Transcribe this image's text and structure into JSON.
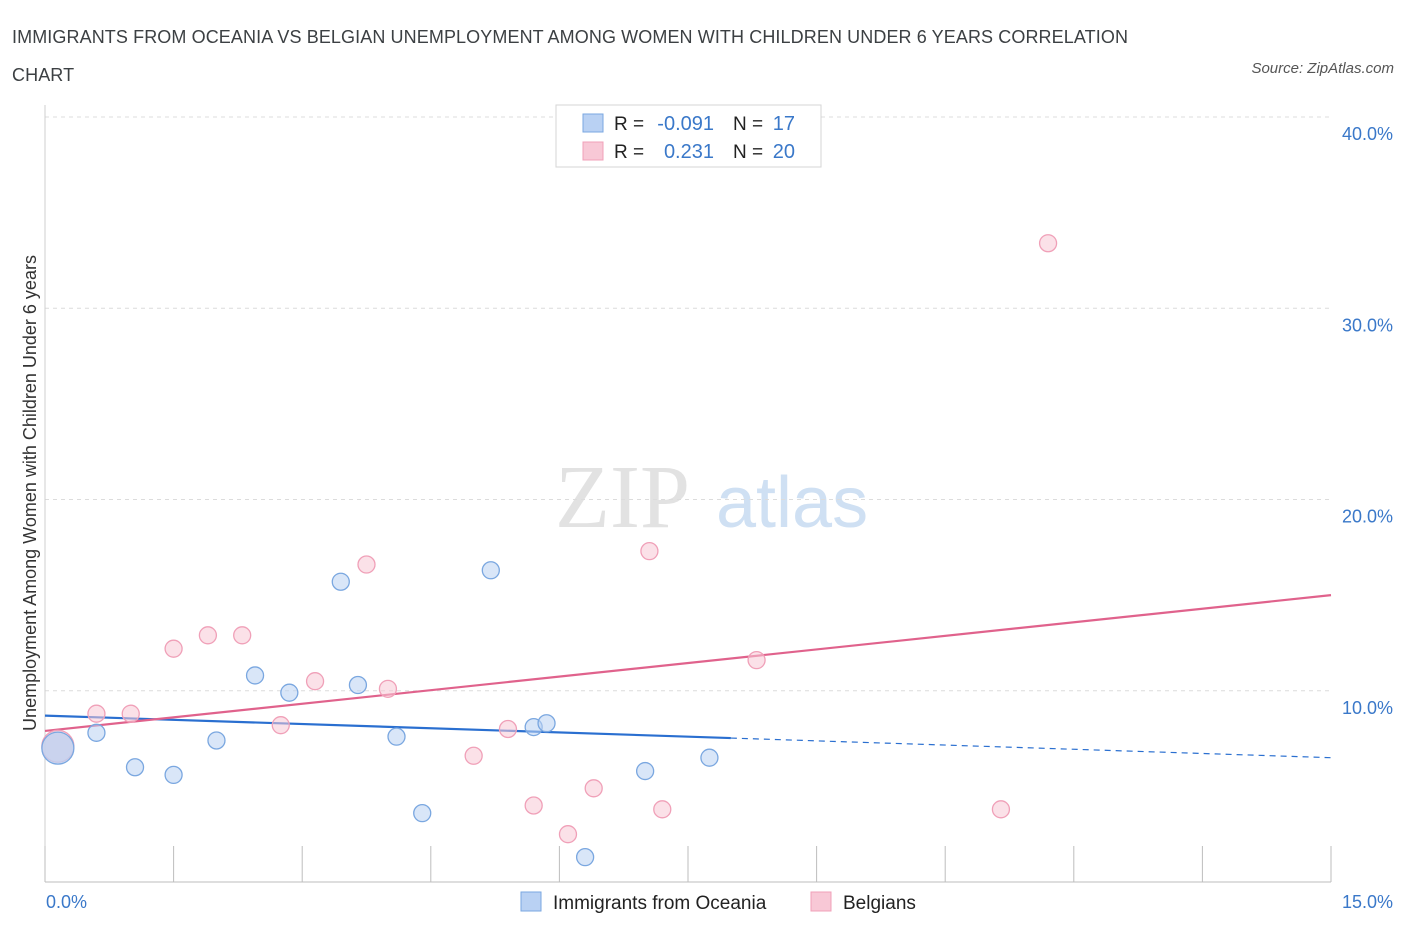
{
  "title": "IMMIGRANTS FROM OCEANIA VS BELGIAN UNEMPLOYMENT AMONG WOMEN WITH CHILDREN UNDER 6 YEARS CORRELATION CHART",
  "source": "Source: ZipAtlas.com",
  "watermark": {
    "zip": "ZIP",
    "atlas": "atlas"
  },
  "legend": {
    "r_label": "R =",
    "n_label": "N =",
    "rows": [
      {
        "r": "-0.091",
        "n": "17"
      },
      {
        "r": "0.231",
        "n": "20"
      }
    ]
  },
  "chart_data": {
    "type": "scatter",
    "title": "IMMIGRANTS FROM OCEANIA VS BELGIAN UNEMPLOYMENT AMONG WOMEN WITH CHILDREN UNDER 6 YEARS CORRELATION CHART",
    "xlabel": "",
    "ylabel": "Unemployment Among Women with Children Under 6 years",
    "xlim": [
      0,
      15
    ],
    "ylim": [
      0,
      40
    ],
    "x_tick_labels": [
      "0.0%",
      "15.0%"
    ],
    "y_ticks": [
      10,
      20,
      30,
      40
    ],
    "y_tick_labels": [
      "10.0%",
      "20.0%",
      "30.0%",
      "40.0%"
    ],
    "grid": true,
    "legend_position": "top-center",
    "series": [
      {
        "name": "Immigrants from Oceania",
        "color": "#7aa7e0",
        "fill": "#b9d1f3",
        "line_color": "#2a6fd0",
        "R": -0.091,
        "N": 17,
        "points": [
          {
            "x": 0.15,
            "y": 7.0,
            "big": true
          },
          {
            "x": 0.6,
            "y": 7.8
          },
          {
            "x": 1.05,
            "y": 6.0
          },
          {
            "x": 1.5,
            "y": 5.6
          },
          {
            "x": 2.0,
            "y": 7.4
          },
          {
            "x": 2.45,
            "y": 10.8
          },
          {
            "x": 2.85,
            "y": 9.9
          },
          {
            "x": 3.45,
            "y": 15.7
          },
          {
            "x": 3.65,
            "y": 10.3
          },
          {
            "x": 4.1,
            "y": 7.6
          },
          {
            "x": 4.4,
            "y": 3.6
          },
          {
            "x": 5.2,
            "y": 16.3
          },
          {
            "x": 5.7,
            "y": 8.1
          },
          {
            "x": 5.85,
            "y": 8.3
          },
          {
            "x": 6.3,
            "y": 1.3
          },
          {
            "x": 7.0,
            "y": 5.8
          },
          {
            "x": 7.75,
            "y": 6.5
          }
        ],
        "trend": {
          "x0": 0,
          "y0": 8.7,
          "x1": 15,
          "y1": 6.5,
          "solid_until": 8.0
        }
      },
      {
        "name": "Belgians",
        "color": "#f0a0b8",
        "fill": "#f8c8d6",
        "line_color": "#e0628c",
        "R": 0.231,
        "N": 20,
        "points": [
          {
            "x": 0.15,
            "y": 7.1,
            "big": true
          },
          {
            "x": 0.6,
            "y": 8.8
          },
          {
            "x": 1.0,
            "y": 8.8
          },
          {
            "x": 1.5,
            "y": 12.2
          },
          {
            "x": 1.9,
            "y": 12.9
          },
          {
            "x": 2.3,
            "y": 12.9
          },
          {
            "x": 2.75,
            "y": 8.2
          },
          {
            "x": 3.15,
            "y": 10.5
          },
          {
            "x": 3.75,
            "y": 16.6
          },
          {
            "x": 4.0,
            "y": 10.1
          },
          {
            "x": 5.0,
            "y": 6.6
          },
          {
            "x": 5.4,
            "y": 8.0
          },
          {
            "x": 5.7,
            "y": 4.0
          },
          {
            "x": 6.1,
            "y": 2.5
          },
          {
            "x": 6.4,
            "y": 4.9
          },
          {
            "x": 7.05,
            "y": 17.3
          },
          {
            "x": 7.2,
            "y": 3.8
          },
          {
            "x": 8.3,
            "y": 11.6
          },
          {
            "x": 11.15,
            "y": 3.8
          },
          {
            "x": 11.7,
            "y": 33.4
          }
        ],
        "trend": {
          "x0": 0,
          "y0": 7.9,
          "x1": 15,
          "y1": 15.0,
          "solid_until": 15.0
        }
      }
    ]
  }
}
